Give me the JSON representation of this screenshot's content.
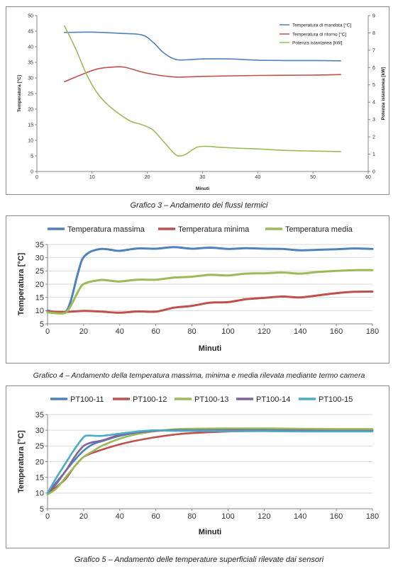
{
  "captions": {
    "c1": "Grafico 3 – Andamento dei flussi termici",
    "c2": "Grafico 4 – Andamento della temperatura massima, minima e media rilevata mediante termo camera",
    "c3": "Grafico 5 – Andamento delle temperature superficiali rilevate dai sensori"
  },
  "chart_data": [
    {
      "type": "line",
      "title": "",
      "xlabel": "Minuti",
      "ylabel": "Temperatura [°C]",
      "y2label": "Potenza istantanea [kW]",
      "xlim": [
        0,
        60
      ],
      "ylim": [
        0,
        50
      ],
      "y2lim": [
        0,
        9
      ],
      "xticks": [
        0,
        10,
        20,
        30,
        40,
        50,
        60
      ],
      "yticks": [
        0,
        5,
        10,
        15,
        20,
        25,
        30,
        35,
        40,
        45,
        50
      ],
      "y2ticks": [
        0,
        1,
        2,
        3,
        4,
        5,
        6,
        7,
        8,
        9
      ],
      "grid": false,
      "legend": "top-right",
      "series": [
        {
          "name": "Temperatura di mandata [°C]",
          "axis": "left",
          "color": "#4f81bd",
          "x": [
            5,
            10,
            15,
            19,
            21,
            23,
            25,
            27,
            30,
            35,
            40,
            45,
            50,
            55
          ],
          "y": [
            44.6,
            44.7,
            44.3,
            43.8,
            41.5,
            38.0,
            36.0,
            35.8,
            36.1,
            36.1,
            35.7,
            35.6,
            35.6,
            35.5
          ]
        },
        {
          "name": "Temperatura di ritorno [°C]",
          "axis": "left",
          "color": "#c0504d",
          "x": [
            5,
            8,
            11,
            14,
            16,
            20,
            25,
            30,
            40,
            50,
            55
          ],
          "y": [
            28.8,
            31.0,
            32.9,
            33.5,
            33.4,
            31.5,
            30.3,
            30.5,
            30.8,
            30.9,
            31.1
          ]
        },
        {
          "name": "Potenza istantanea [kW]",
          "axis": "right",
          "color": "#9bbb59",
          "x": [
            5,
            7,
            9,
            11,
            13,
            15,
            17,
            19,
            21,
            23,
            25,
            26,
            27,
            29,
            31,
            33,
            36,
            40,
            45,
            50,
            55
          ],
          "y": [
            8.4,
            7.1,
            5.6,
            4.5,
            3.8,
            3.3,
            2.9,
            2.7,
            2.4,
            1.7,
            1.0,
            0.9,
            1.0,
            1.4,
            1.45,
            1.4,
            1.35,
            1.3,
            1.22,
            1.18,
            1.15
          ]
        }
      ]
    },
    {
      "type": "line",
      "title": "",
      "xlabel": "Minuti",
      "ylabel": "Temperatura [°C]",
      "xlim": [
        0,
        180
      ],
      "ylim": [
        5,
        35
      ],
      "xticks": [
        0,
        20,
        40,
        60,
        80,
        100,
        120,
        140,
        160,
        180
      ],
      "yticks": [
        5,
        10,
        15,
        20,
        25,
        30,
        35
      ],
      "grid": true,
      "legend": "top",
      "series": [
        {
          "name": "Temperatura massima",
          "color": "#4f81bd",
          "x": [
            0,
            5,
            10,
            13,
            16,
            19,
            22,
            25,
            30,
            35,
            40,
            50,
            60,
            70,
            80,
            90,
            100,
            110,
            120,
            130,
            140,
            150,
            160,
            170,
            180
          ],
          "y": [
            10,
            9.4,
            9.5,
            14,
            22,
            29,
            31.5,
            32.6,
            33.3,
            33.0,
            32.6,
            33.5,
            33.4,
            34.0,
            33.4,
            33.8,
            33.3,
            33.6,
            33.4,
            33.3,
            32.8,
            33.0,
            33.2,
            33.5,
            33.3
          ]
        },
        {
          "name": "Temperatura minima",
          "color": "#c0504d",
          "x": [
            0,
            10,
            20,
            30,
            40,
            50,
            60,
            70,
            80,
            90,
            100,
            110,
            120,
            130,
            140,
            150,
            160,
            170,
            180
          ],
          "y": [
            9.6,
            9.5,
            9.9,
            9.6,
            9.2,
            9.7,
            9.6,
            11.1,
            11.8,
            13.0,
            13.2,
            14.3,
            14.8,
            15.3,
            15.0,
            15.8,
            16.6,
            17.1,
            17.2
          ]
        },
        {
          "name": "Temperatura media",
          "color": "#9bbb59",
          "x": [
            0,
            5,
            10,
            13,
            16,
            19,
            22,
            25,
            30,
            35,
            40,
            50,
            60,
            70,
            80,
            90,
            100,
            110,
            120,
            130,
            140,
            150,
            160,
            170,
            180
          ],
          "y": [
            9.3,
            9.0,
            9.2,
            12,
            16,
            19.5,
            20.6,
            21.1,
            21.6,
            21.3,
            21.0,
            21.7,
            21.7,
            22.5,
            22.8,
            23.5,
            23.3,
            24.0,
            24.1,
            24.4,
            24.0,
            24.6,
            25.0,
            25.3,
            25.3
          ]
        }
      ]
    },
    {
      "type": "line",
      "title": "",
      "xlabel": "Minuti",
      "ylabel": "Temperatura [°C]",
      "xlim": [
        0,
        180
      ],
      "ylim": [
        5,
        35
      ],
      "xticks": [
        0,
        20,
        40,
        60,
        80,
        100,
        120,
        140,
        160,
        180
      ],
      "yticks": [
        5,
        10,
        15,
        20,
        25,
        30,
        35
      ],
      "grid": true,
      "legend": "top",
      "series": [
        {
          "name": "PT100-11",
          "color": "#4f81bd",
          "x": [
            0,
            5,
            10,
            15,
            20,
            25,
            30,
            40,
            50,
            60,
            70,
            80,
            100,
            120,
            140,
            160,
            180
          ],
          "y": [
            10,
            13,
            17,
            20.5,
            23.5,
            25.5,
            26.5,
            28.2,
            29.3,
            29.9,
            30.1,
            30.2,
            30.2,
            30.2,
            30.1,
            30.1,
            30.1
          ]
        },
        {
          "name": "PT100-12",
          "color": "#c0504d",
          "x": [
            0,
            5,
            10,
            15,
            20,
            25,
            30,
            40,
            50,
            60,
            70,
            80,
            100,
            120,
            140,
            160,
            180
          ],
          "y": [
            10,
            12,
            14.5,
            18.5,
            21.5,
            22.8,
            23.8,
            25.5,
            26.8,
            27.8,
            28.6,
            29.1,
            29.6,
            29.8,
            29.9,
            30.0,
            30.0
          ]
        },
        {
          "name": "PT100-13",
          "color": "#9bbb59",
          "x": [
            0,
            5,
            10,
            15,
            20,
            25,
            30,
            40,
            50,
            60,
            70,
            80,
            100,
            120,
            140,
            160,
            180
          ],
          "y": [
            9.5,
            11.5,
            15,
            18.5,
            21.5,
            23.3,
            25,
            27.3,
            28.8,
            29.7,
            30.3,
            30.5,
            30.6,
            30.6,
            30.5,
            30.4,
            30.4
          ]
        },
        {
          "name": "PT100-14",
          "color": "#8064a2",
          "x": [
            0,
            5,
            10,
            15,
            20,
            25,
            30,
            40,
            50,
            60,
            70,
            80,
            100,
            120,
            140,
            160,
            180
          ],
          "y": [
            10,
            13.5,
            17,
            21.5,
            25,
            26.2,
            26.7,
            28.5,
            29.3,
            29.8,
            30.0,
            30.0,
            30.0,
            29.9,
            29.9,
            29.8,
            29.8
          ]
        },
        {
          "name": "PT100-15",
          "color": "#4bacc6",
          "x": [
            0,
            5,
            10,
            15,
            20,
            23,
            30,
            40,
            50,
            60,
            70,
            80,
            100,
            120,
            140,
            160,
            180
          ],
          "y": [
            10,
            15,
            19.5,
            24,
            27.8,
            28.3,
            28.2,
            28.9,
            29.6,
            30.0,
            29.8,
            29.8,
            29.7,
            29.7,
            29.6,
            29.6,
            29.6
          ]
        }
      ]
    }
  ]
}
